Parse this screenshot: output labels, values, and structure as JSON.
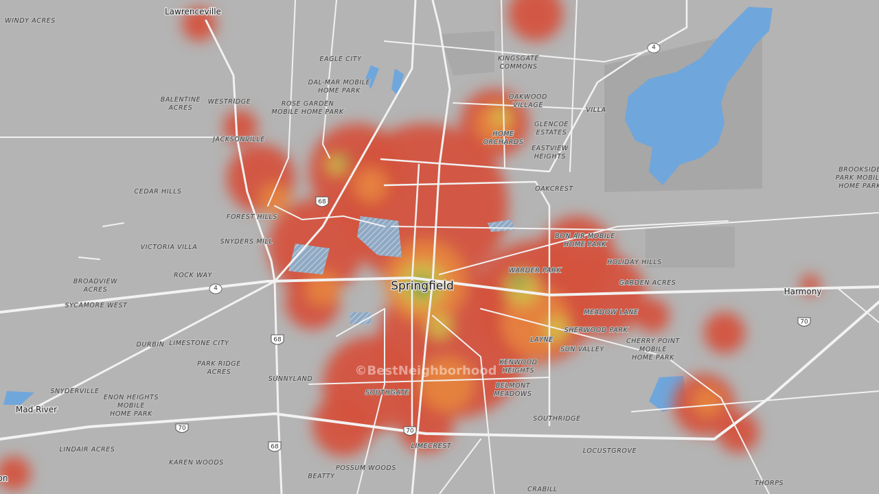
{
  "neighborhoods": [
    [
      "WINDY ACRES"
    ],
    [
      "EAGLE CITY"
    ],
    [
      "KINGSGATE",
      "COMMONS"
    ],
    [
      "DAL-MAR MOBILE",
      "HOME PARK"
    ],
    [
      "BALENTINE",
      "ACRES"
    ],
    [
      "WESTRIDGE"
    ],
    [
      "ROSE GARDEN",
      "MOBILE HOME PARK"
    ],
    [
      "OAKWOOD",
      "VILLAGE"
    ],
    [
      "VILLA"
    ],
    [
      "GLENCOE",
      "ESTATES"
    ],
    [
      "HOME",
      "ORCHARDS"
    ],
    [
      "JACKSONVILLE"
    ],
    [
      "EASTVIEW",
      "HEIGHTS"
    ],
    [
      "BROOKSIDE",
      "PARK MOBILE",
      "HOME PARK"
    ],
    [
      "OAKCREST"
    ],
    [
      "CEDAR HILLS"
    ],
    [
      "FOREST HILLS"
    ],
    [
      "BON AIR MOBILE",
      "HOME PARK"
    ],
    [
      "SNYDERS MILL"
    ],
    [
      "VICTORIA VILLA"
    ],
    [
      "HOLIDAY HILLS"
    ],
    [
      "WARDER PARK"
    ],
    [
      "ROCK WAY"
    ],
    [
      "BROADVIEW",
      "ACRES"
    ],
    [
      "GARDEN ACRES"
    ],
    [
      "SYCAMORE WEST"
    ],
    [
      "MEADOW LANE"
    ],
    [
      "SHERWOOD PARK"
    ],
    [
      "LIMESTONE CITY"
    ],
    [
      "DURBIN"
    ],
    [
      "LAYNE"
    ],
    [
      "CHERRY POINT",
      "MOBILE",
      "HOME PARK"
    ],
    [
      "SUN VALLEY"
    ],
    [
      "PARK RIDGE",
      "ACRES"
    ],
    [
      "KENWOOD",
      "HEIGHTS"
    ],
    [
      "SUNNYLAND"
    ],
    [
      "BELMONT",
      "MEADOWS"
    ],
    [
      "SNYDERVILLE"
    ],
    [
      "SOUTHGATE"
    ],
    [
      "ENON HEIGHTS",
      "MOBILE",
      "HOME PARK"
    ],
    [
      "SOUTHRIDGE"
    ],
    [
      "LIMECREST"
    ],
    [
      "LINDAIR ACRES"
    ],
    [
      "LOCUSTGROVE"
    ],
    [
      "KAREN WOODS"
    ],
    [
      "POSSUM WOODS"
    ],
    [
      "BEATTY"
    ],
    [
      "THORPS"
    ],
    [
      "CRABILL"
    ]
  ],
  "cities": [
    "Lawrenceville",
    "Springfield",
    "Harmony",
    "Mad River",
    "on"
  ],
  "shields": [
    "4",
    "68",
    "4",
    "68",
    "70",
    "70",
    "68",
    "70"
  ],
  "watermark": "©BestNeighborhood"
}
